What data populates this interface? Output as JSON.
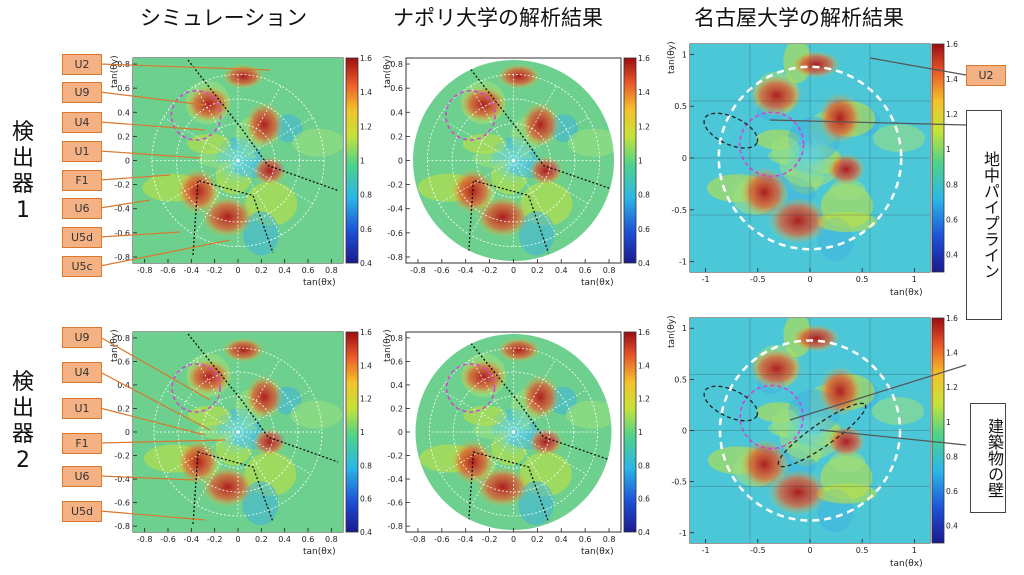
{
  "titles": {
    "simulation": "シミュレーション",
    "napoli": "ナポリ大学の解析結果",
    "nagoya": "名古屋大学の解析結果"
  },
  "detectors": [
    "検出器1",
    "検出器2"
  ],
  "labels_top": [
    "U2",
    "U9",
    "U4",
    "U1",
    "F1",
    "U6",
    "U5d",
    "U5c"
  ],
  "labels_bottom": [
    "U9",
    "U4",
    "U1",
    "F1",
    "U6",
    "U5d"
  ],
  "label_right_top": "U2",
  "callouts": {
    "pipeline": "地中パイプライン",
    "wall": "建築物の壁"
  },
  "axis": {
    "xlabel": "tan(θx)",
    "ylabel": "tan(θy)"
  },
  "chart_data": [
    {
      "type": "heatmap",
      "panel": "シミュレーション",
      "detector": "検出器1",
      "xlim": [
        -0.9,
        0.9
      ],
      "ylim": [
        -0.85,
        0.85
      ],
      "xticks": [
        "-0.8",
        "-0.6",
        "-0.4",
        "-0.2",
        "0",
        "0.2",
        "0.4",
        "0.6",
        "0.8"
      ],
      "yticks": [
        "-0.8",
        "-0.6",
        "-0.4",
        "-0.2",
        "0",
        "0.2",
        "0.4",
        "0.6",
        "0.8"
      ],
      "colorbar": {
        "range": [
          0.4,
          1.6
        ],
        "ticks": [
          "0.4",
          "0.6",
          "0.8",
          "1",
          "1.2",
          "1.4",
          "1.6"
        ]
      }
    },
    {
      "type": "heatmap",
      "panel": "ナポリ大学の解析結果",
      "detector": "検出器1",
      "xlim": [
        -0.9,
        0.9
      ],
      "ylim": [
        -0.85,
        0.85
      ],
      "xticks": [
        "-0.8",
        "-0.6",
        "-0.4",
        "-0.2",
        "0",
        "0.2",
        "0.4",
        "0.6",
        "0.8"
      ],
      "yticks": [
        "-0.8",
        "-0.6",
        "-0.4",
        "-0.2",
        "0",
        "0.2",
        "0.4",
        "0.6",
        "0.8"
      ],
      "colorbar": {
        "range": [
          0.4,
          1.6
        ],
        "ticks": [
          "0.4",
          "0.6",
          "0.8",
          "1",
          "1.2",
          "1.4",
          "1.6"
        ]
      }
    },
    {
      "type": "heatmap",
      "panel": "名古屋大学の解析結果",
      "detector": "検出器1",
      "xlim": [
        -1.15,
        1.15
      ],
      "ylim": [
        -1.1,
        1.1
      ],
      "xticks": [
        "-1",
        "-0.5",
        "0",
        "0.5",
        "1"
      ],
      "yticks": [
        "-1",
        "-0.5",
        "0",
        "0.5",
        "1"
      ],
      "colorbar": {
        "range": [
          0.3,
          1.6
        ],
        "ticks": [
          "0.4",
          "0.6",
          "0.8",
          "1",
          "1.2",
          "1.4",
          "1.6"
        ]
      }
    },
    {
      "type": "heatmap",
      "panel": "シミュレーション",
      "detector": "検出器2",
      "xlim": [
        -0.9,
        0.9
      ],
      "ylim": [
        -0.85,
        0.85
      ],
      "xticks": [
        "-0.8",
        "-0.6",
        "-0.4",
        "-0.2",
        "0",
        "0.2",
        "0.4",
        "0.6",
        "0.8"
      ],
      "yticks": [
        "-0.8",
        "-0.6",
        "-0.4",
        "-0.2",
        "0",
        "0.2",
        "0.4",
        "0.6",
        "0.8"
      ],
      "colorbar": {
        "range": [
          0.4,
          1.6
        ],
        "ticks": [
          "0.4",
          "0.6",
          "0.8",
          "1",
          "1.2",
          "1.4",
          "1.6"
        ]
      }
    },
    {
      "type": "heatmap",
      "panel": "ナポリ大学の解析結果",
      "detector": "検出器2",
      "xlim": [
        -0.9,
        0.9
      ],
      "ylim": [
        -0.85,
        0.85
      ],
      "xticks": [
        "-0.8",
        "-0.6",
        "-0.4",
        "-0.2",
        "0",
        "0.2",
        "0.4",
        "0.6",
        "0.8"
      ],
      "yticks": [
        "-0.8",
        "-0.6",
        "-0.4",
        "-0.2",
        "0",
        "0.2",
        "0.4",
        "0.6",
        "0.8"
      ],
      "colorbar": {
        "range": [
          0.4,
          1.6
        ],
        "ticks": [
          "0.4",
          "0.6",
          "0.8",
          "1",
          "1.2",
          "1.4",
          "1.6"
        ]
      }
    },
    {
      "type": "heatmap",
      "panel": "名古屋大学の解析結果",
      "detector": "検出器2",
      "xlim": [
        -1.15,
        1.15
      ],
      "ylim": [
        -1.1,
        1.1
      ],
      "xticks": [
        "-1",
        "-0.5",
        "0",
        "0.5",
        "1"
      ],
      "yticks": [
        "-1",
        "-0.5",
        "0",
        "0.5",
        "1"
      ],
      "colorbar": {
        "range": [
          0.3,
          1.6
        ],
        "ticks": [
          "0.4",
          "0.6",
          "0.8",
          "1",
          "1.2",
          "1.4",
          "1.6"
        ]
      }
    }
  ],
  "colors": {
    "label_fill": "#f4b183",
    "label_border": "#d9782f",
    "connector": "#d9782f",
    "dashed_magenta": "#d63fd6",
    "dashed_white": "#ffffff",
    "dotted_black": "#111111"
  }
}
